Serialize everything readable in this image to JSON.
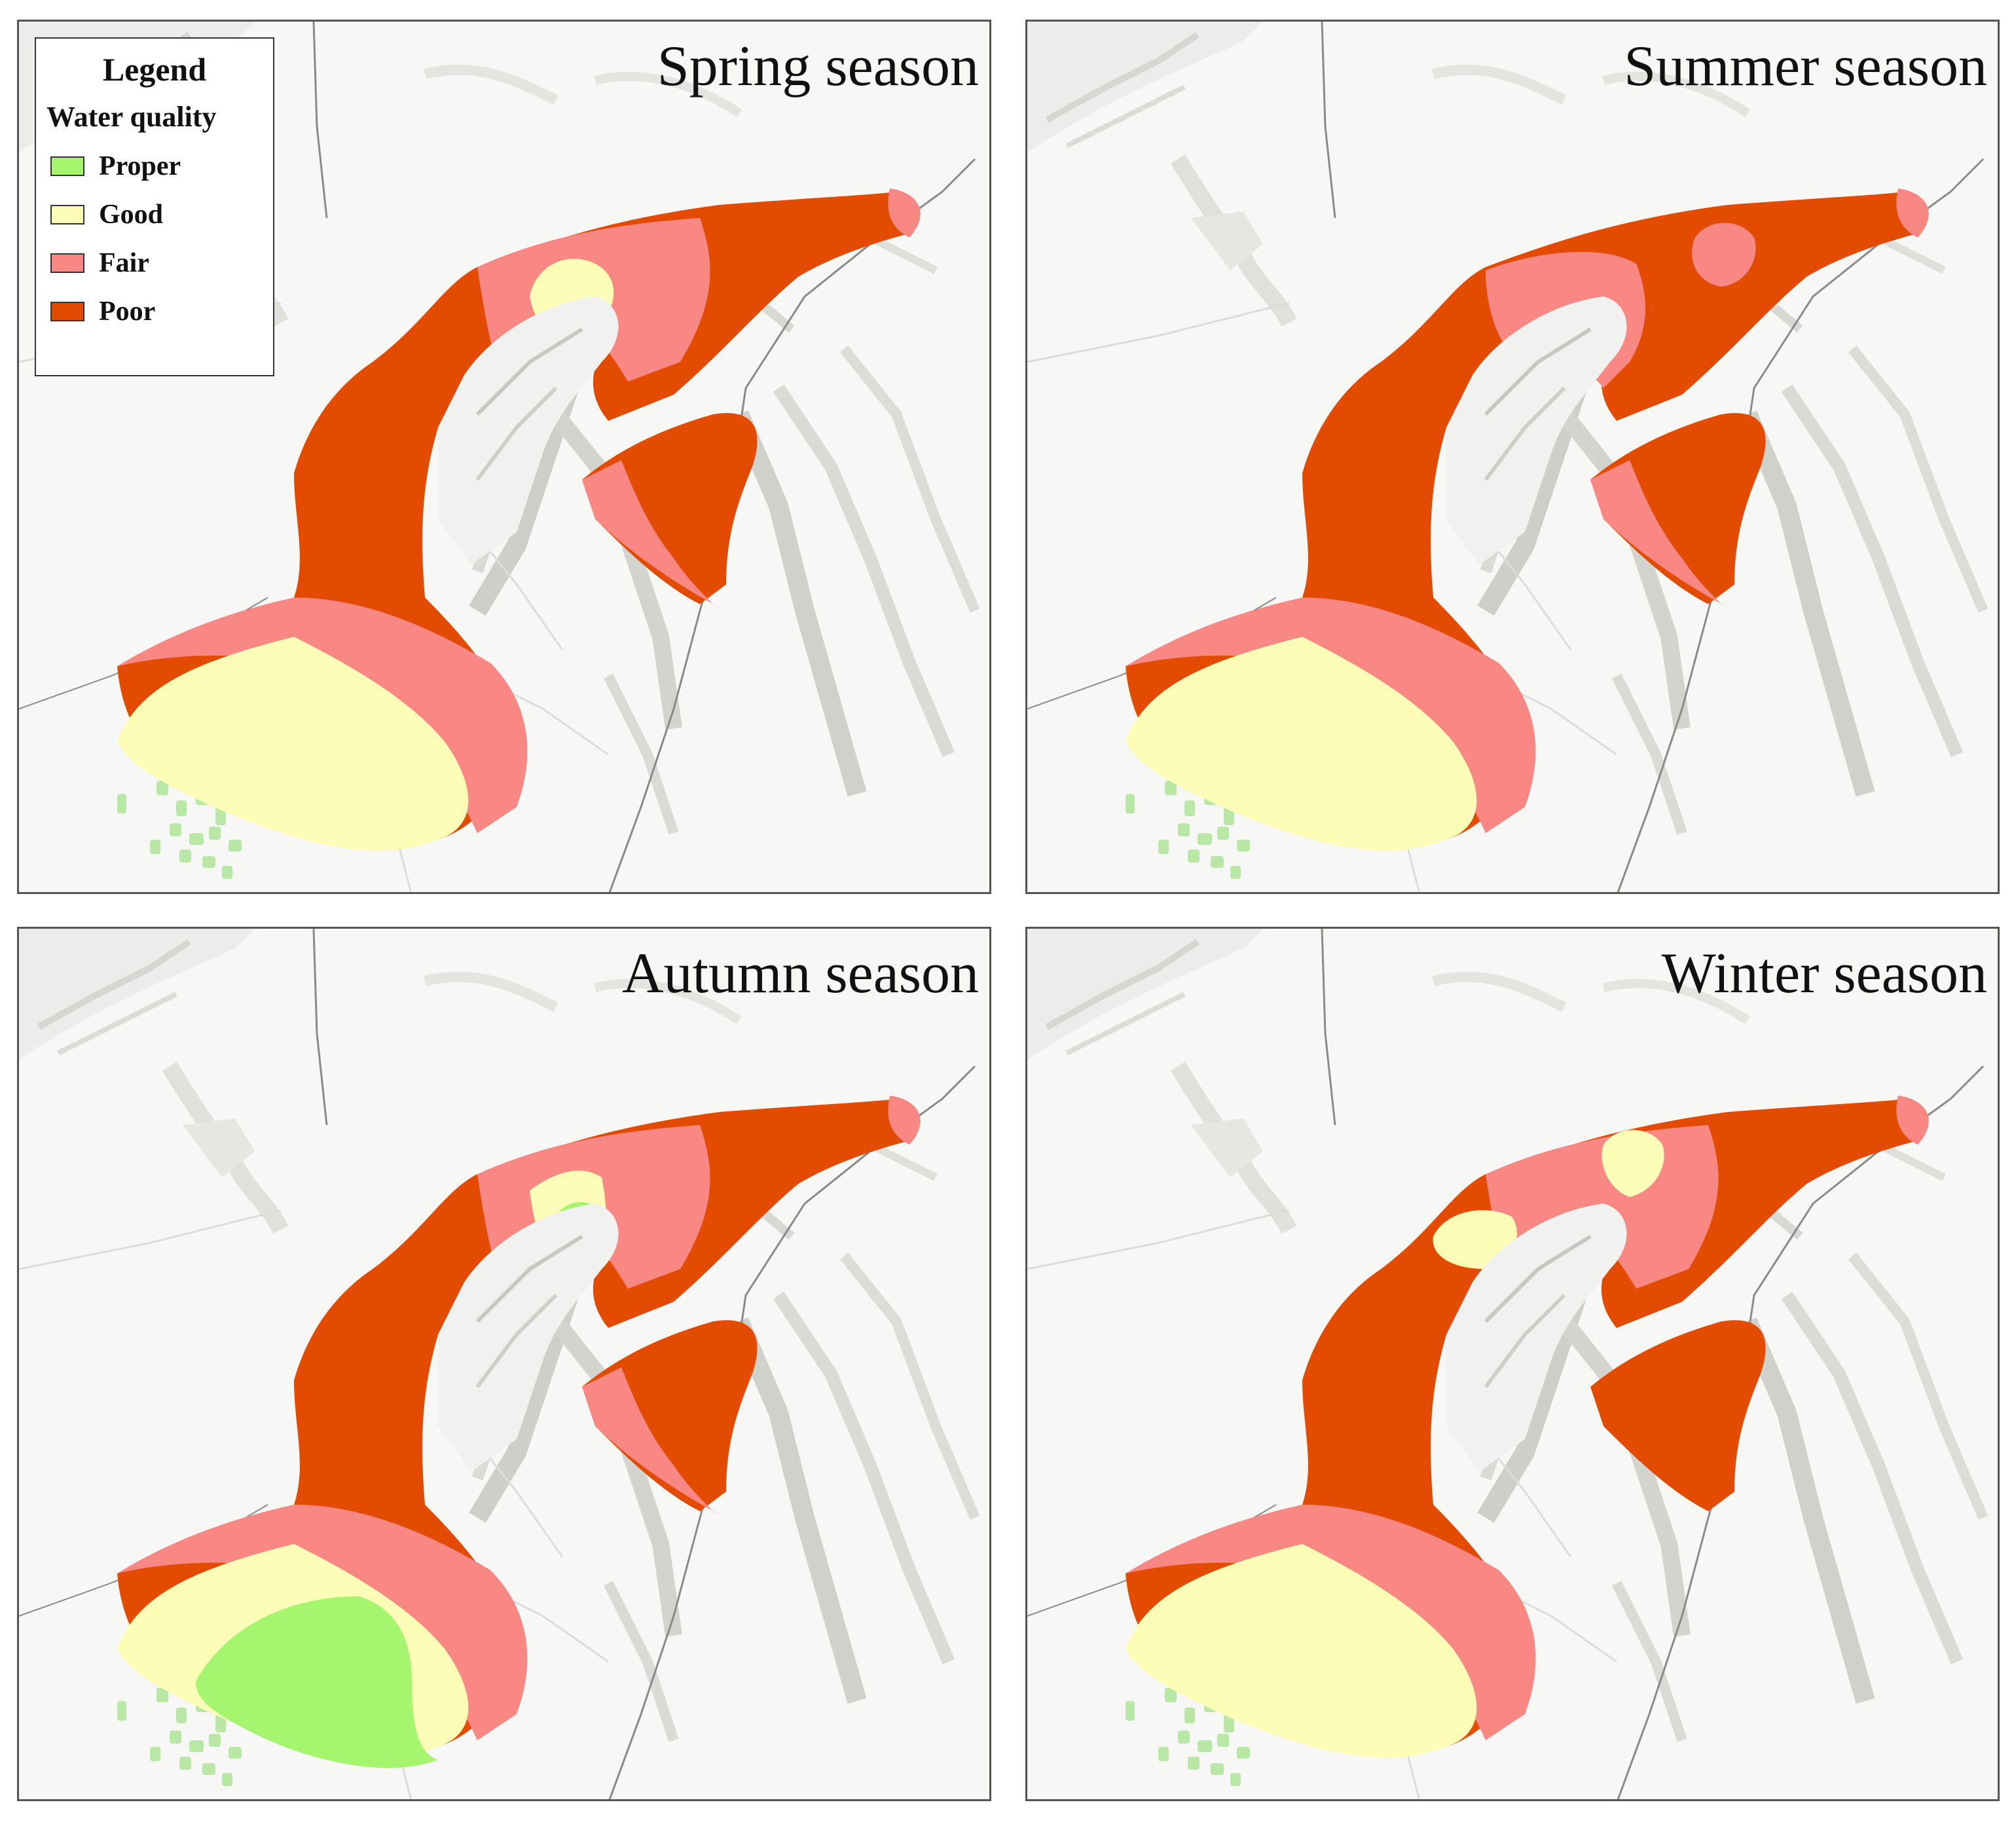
{
  "legend": {
    "title": "Legend",
    "subtitle": "Water quality",
    "items": [
      {
        "label": "Proper",
        "color": "#a5f56e"
      },
      {
        "label": "Good",
        "color": "#fdfdb8"
      },
      {
        "label": "Fair",
        "color": "#f98783"
      },
      {
        "label": "Poor",
        "color": "#e24b00"
      }
    ]
  },
  "panels": [
    {
      "title": "Spring season"
    },
    {
      "title": "Summer season"
    },
    {
      "title": "Autumn season"
    },
    {
      "title": "Winter season"
    }
  ],
  "colors": {
    "terrain": "#f7f7f5",
    "relief": "#e2e2de",
    "relief_dark": "#cfcfca",
    "road": "#8a8a8a",
    "road_light": "#dcdcd8",
    "proper": "#a5f56e",
    "good": "#fdfdb8",
    "fair": "#f98783",
    "poor": "#e24b00"
  }
}
